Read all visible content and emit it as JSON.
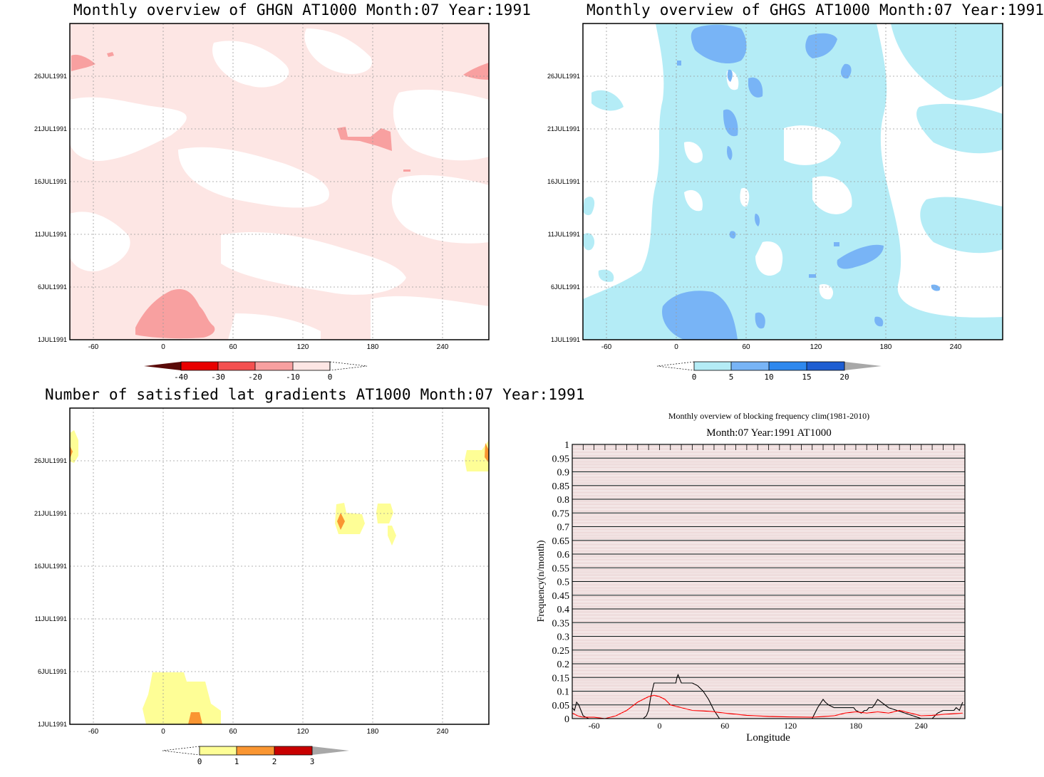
{
  "panels": {
    "ghgn": {
      "title": "Monthly overview of GHGN AT1000 Month:07 Year:1991",
      "y_ticks": [
        "1JUL1991",
        "6JUL1991",
        "11JUL1991",
        "16JUL1991",
        "21JUL1991",
        "26JUL1991"
      ],
      "x_ticks": [
        "-60",
        "0",
        "60",
        "120",
        "180",
        "240"
      ],
      "colorbar": {
        "labels": [
          "-40",
          "-30",
          "-20",
          "-10",
          "0"
        ],
        "colors": [
          "#5a0a08",
          "#e80000",
          "#f45050",
          "#f8a0a0",
          "#fde6e4"
        ]
      }
    },
    "ghgs": {
      "title": "Monthly overview of GHGS AT1000 Month:07 Year:1991",
      "y_ticks": [
        "1JUL1991",
        "6JUL1991",
        "11JUL1991",
        "16JUL1991",
        "21JUL1991",
        "26JUL1991"
      ],
      "x_ticks": [
        "-60",
        "0",
        "60",
        "120",
        "180",
        "240"
      ],
      "colorbar": {
        "labels": [
          "0",
          "5",
          "10",
          "15",
          "20"
        ],
        "colors": [
          "#b4ecf6",
          "#78b4f6",
          "#2e88ee",
          "#1e5ed2",
          "#a8a8a8"
        ]
      }
    },
    "gradients": {
      "title": "Number of satisfied lat gradients AT1000 Month:07 Year:1991",
      "y_ticks": [
        "1JUL1991",
        "6JUL1991",
        "11JUL1991",
        "16JUL1991",
        "21JUL1991",
        "26JUL1991"
      ],
      "x_ticks": [
        "-60",
        "0",
        "60",
        "120",
        "180",
        "240"
      ],
      "colorbar": {
        "labels": [
          "0",
          "1",
          "2",
          "3"
        ],
        "colors": [
          "#fefe96",
          "#fa9632",
          "#c80000",
          "#a8a8a8"
        ]
      }
    },
    "blocking": {
      "title": "Monthly overview of blocking frequency clim(1981-2010)",
      "subtitle": "Month:07 Year:1991  AT1000"
    }
  },
  "chart_data": [
    {
      "type": "heatmap",
      "title": "Monthly overview of GHGN AT1000 Month:07 Year:1991",
      "xlabel": "",
      "ylabel": "",
      "x_ticks": [
        -60,
        0,
        60,
        120,
        180,
        240
      ],
      "xlim": [
        -80,
        280
      ],
      "y_ticks": [
        "1JUL1991",
        "6JUL1991",
        "11JUL1991",
        "16JUL1991",
        "21JUL1991",
        "26JUL1991"
      ],
      "levels": [
        -40,
        -30,
        -20,
        -10,
        0
      ]
    },
    {
      "type": "heatmap",
      "title": "Monthly overview of GHGS AT1000 Month:07 Year:1991",
      "xlabel": "",
      "ylabel": "",
      "x_ticks": [
        -60,
        0,
        60,
        120,
        180,
        240
      ],
      "xlim": [
        -80,
        280
      ],
      "y_ticks": [
        "1JUL1991",
        "6JUL1991",
        "11JUL1991",
        "16JUL1991",
        "21JUL1991",
        "26JUL1991"
      ],
      "levels": [
        0,
        5,
        10,
        15,
        20
      ]
    },
    {
      "type": "heatmap",
      "title": "Number of satisfied lat gradients AT1000 Month:07 Year:1991",
      "xlabel": "",
      "ylabel": "",
      "x_ticks": [
        -60,
        0,
        60,
        120,
        180,
        240
      ],
      "xlim": [
        -80,
        280
      ],
      "y_ticks": [
        "1JUL1991",
        "6JUL1991",
        "11JUL1991",
        "16JUL1991",
        "21JUL1991",
        "26JUL1991"
      ],
      "levels": [
        0,
        1,
        2,
        3
      ]
    },
    {
      "type": "line",
      "title": "Monthly overview of blocking frequency clim(1981-2010)",
      "subtitle": "Month:07 Year:1991  AT1000",
      "xlabel": "Longitude",
      "ylabel": "Frequency(n/month)",
      "xlim": [
        -80,
        280
      ],
      "ylim": [
        0,
        1
      ],
      "x_ticks": [
        -60,
        0,
        60,
        120,
        180,
        240
      ],
      "y_ticks": [
        "0",
        "0.05",
        "0.1",
        "0.15",
        "0.2",
        "0.25",
        "0.3",
        "0.35",
        "0.4",
        "0.45",
        "0.5",
        "0.55",
        "0.6",
        "0.65",
        "0.7",
        "0.75",
        "0.8",
        "0.85",
        "0.9",
        "0.95",
        "1"
      ],
      "series": [
        {
          "color": "#000000",
          "x": [
            -80,
            -78,
            -76,
            -74,
            -72,
            -70,
            -65,
            -45,
            -25,
            -20,
            -15,
            -12,
            -10,
            -8,
            -5,
            0,
            5,
            10,
            15,
            16,
            17,
            18,
            19,
            20,
            25,
            30,
            35,
            40,
            45,
            50,
            55,
            60,
            100,
            140,
            145,
            150,
            152,
            155,
            160,
            165,
            170,
            175,
            178,
            180,
            185,
            188,
            190,
            192,
            195,
            197,
            200,
            210,
            240,
            250,
            255,
            260,
            265,
            270,
            272,
            275,
            278
          ],
          "y": [
            0.04,
            0.03,
            0.06,
            0.05,
            0.03,
            0.01,
            0.0,
            0.0,
            0.0,
            0.0,
            0.0,
            0.01,
            0.03,
            0.08,
            0.13,
            0.13,
            0.13,
            0.13,
            0.13,
            0.15,
            0.16,
            0.15,
            0.14,
            0.13,
            0.13,
            0.13,
            0.12,
            0.1,
            0.07,
            0.03,
            0.0,
            0.0,
            0.0,
            0.0,
            0.04,
            0.07,
            0.06,
            0.05,
            0.04,
            0.04,
            0.04,
            0.04,
            0.04,
            0.03,
            0.02,
            0.03,
            0.03,
            0.04,
            0.04,
            0.05,
            0.07,
            0.04,
            0.0,
            0.0,
            0.02,
            0.03,
            0.03,
            0.03,
            0.04,
            0.03,
            0.06
          ]
        },
        {
          "color": "#ff0000",
          "x": [
            -80,
            -75,
            -70,
            -60,
            -50,
            -40,
            -30,
            -20,
            -15,
            -10,
            -5,
            0,
            5,
            10,
            20,
            30,
            40,
            50,
            60,
            80,
            100,
            120,
            140,
            160,
            170,
            180,
            190,
            200,
            210,
            220,
            230,
            240,
            250,
            260,
            270,
            278
          ],
          "y": [
            0.02,
            0.01,
            0.005,
            0.005,
            0.0,
            0.01,
            0.03,
            0.06,
            0.07,
            0.08,
            0.085,
            0.08,
            0.07,
            0.05,
            0.04,
            0.03,
            0.028,
            0.025,
            0.02,
            0.012,
            0.008,
            0.006,
            0.005,
            0.01,
            0.02,
            0.025,
            0.02,
            0.025,
            0.02,
            0.03,
            0.02,
            0.01,
            0.012,
            0.015,
            0.018,
            0.02
          ]
        }
      ]
    }
  ],
  "blocking_axis": {
    "xlabel": "Longitude",
    "ylabel": "Frequency(n/month)"
  }
}
